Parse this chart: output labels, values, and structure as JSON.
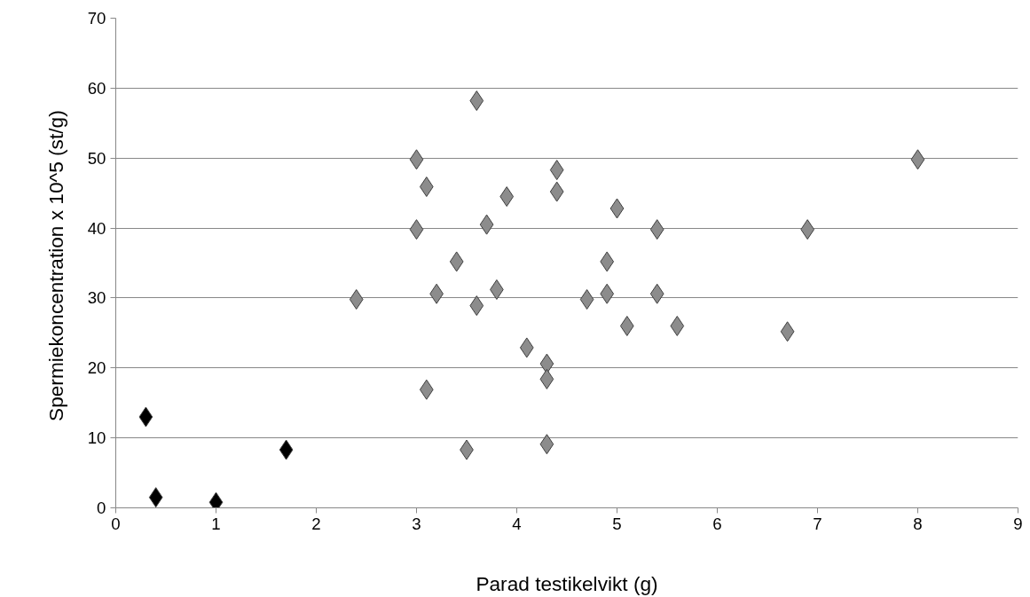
{
  "chart_data": {
    "type": "scatter",
    "xlabel": "Parad testikelvikt (g)",
    "ylabel": "Spermiekoncentration  x 10^5 (st/g)",
    "xlim": [
      0,
      9
    ],
    "xticks": [
      0,
      1,
      2,
      3,
      4,
      5,
      6,
      7,
      8,
      9
    ],
    "ylim": [
      0,
      70
    ],
    "yticks": [
      0,
      10,
      20,
      30,
      40,
      50,
      60,
      70
    ],
    "grid": "y",
    "marker": "diamond",
    "series": [
      {
        "color": "#000000",
        "x": [
          0.3,
          0.4,
          1.0,
          1.7
        ],
        "values": [
          13,
          1.5,
          0.8,
          8.3
        ]
      },
      {
        "color": "#8c8c8c",
        "x": [
          2.4,
          3.0,
          3.0,
          3.1,
          3.1,
          3.2,
          3.4,
          3.5,
          3.6,
          3.6,
          3.7,
          3.8,
          3.9,
          4.1,
          4.3,
          4.3,
          4.3,
          4.4,
          4.4,
          4.7,
          4.9,
          4.9,
          5.0,
          5.1,
          5.4,
          5.4,
          5.6,
          6.7,
          6.9,
          8.0
        ],
        "values": [
          29.8,
          49.8,
          39.8,
          45.9,
          16.9,
          30.6,
          35.2,
          8.3,
          58.2,
          28.9,
          40.5,
          31.2,
          44.5,
          22.9,
          20.6,
          18.4,
          9.1,
          48.3,
          45.2,
          29.8,
          35.2,
          30.6,
          42.8,
          26.0,
          39.8,
          30.6,
          26.0,
          25.2,
          39.8,
          49.8
        ]
      }
    ]
  }
}
